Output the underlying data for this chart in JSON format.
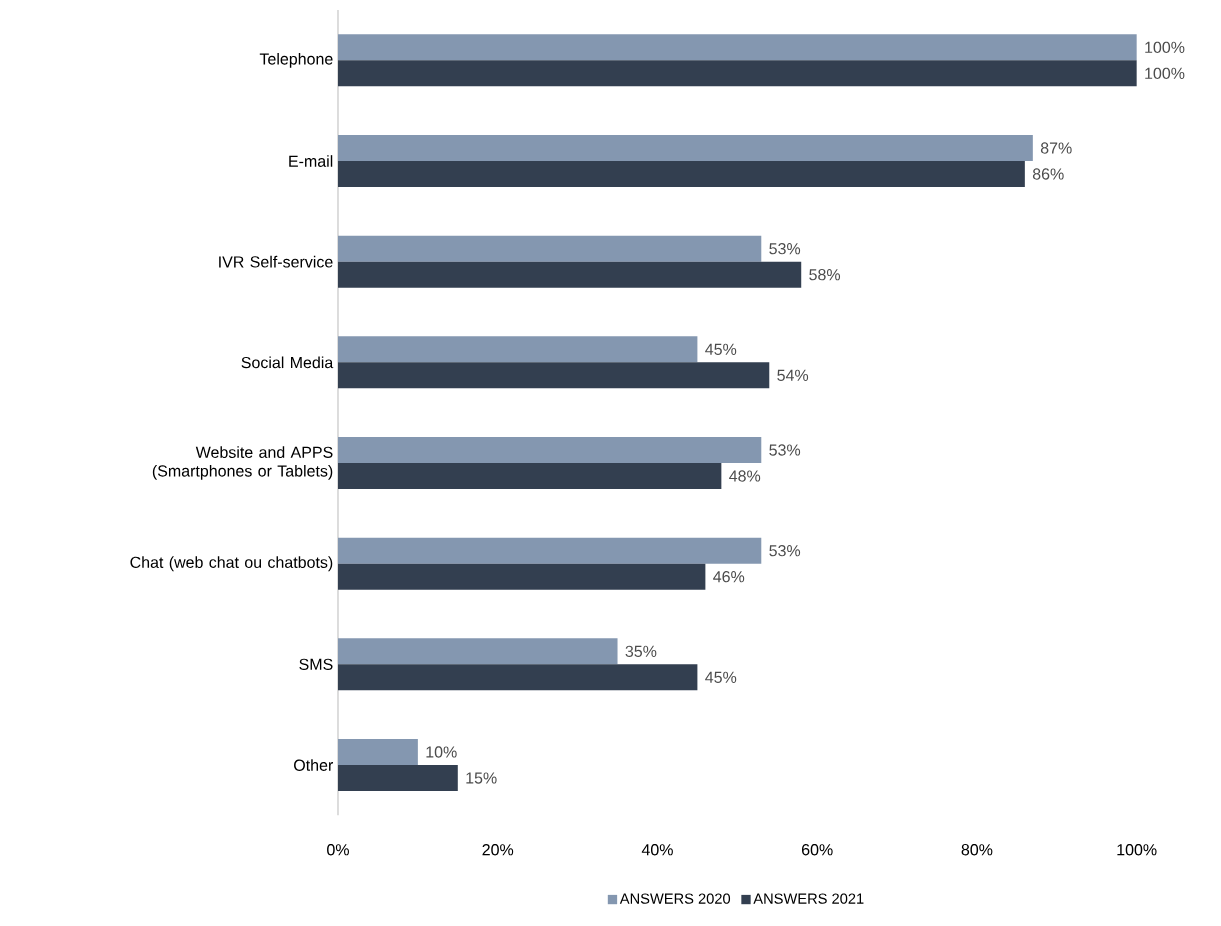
{
  "chart_data": {
    "type": "bar",
    "orientation": "horizontal",
    "categories": [
      "Telephone",
      "E-mail",
      "IVR Self-service",
      "Social Media",
      "Website and APPS (Smartphones or Tablets)",
      "Chat (web chat ou chatbots)",
      "SMS",
      "Other"
    ],
    "series": [
      {
        "name": "ANSWERS 2020",
        "color": "#8497b0",
        "values": [
          100,
          87,
          53,
          45,
          53,
          53,
          35,
          10
        ],
        "value_labels": [
          "100%",
          "87%",
          "53%",
          "45%",
          "53%",
          "53%",
          "35%",
          "10%"
        ]
      },
      {
        "name": "ANSWERS 2021",
        "color": "#333f50",
        "values": [
          100,
          86,
          58,
          54,
          48,
          46,
          45,
          15
        ],
        "value_labels": [
          "100%",
          "86%",
          "58%",
          "54%",
          "48%",
          "46%",
          "45%",
          "15%"
        ]
      }
    ],
    "xlim": [
      0,
      100
    ],
    "xticks": [
      {
        "value": 0,
        "label": "0%"
      },
      {
        "value": 20,
        "label": "20%"
      },
      {
        "value": 40,
        "label": "40%"
      },
      {
        "value": 60,
        "label": "60%"
      },
      {
        "value": 80,
        "label": "80%"
      },
      {
        "value": 100,
        "label": "100%"
      }
    ],
    "grid": false,
    "legend": "bottom"
  }
}
